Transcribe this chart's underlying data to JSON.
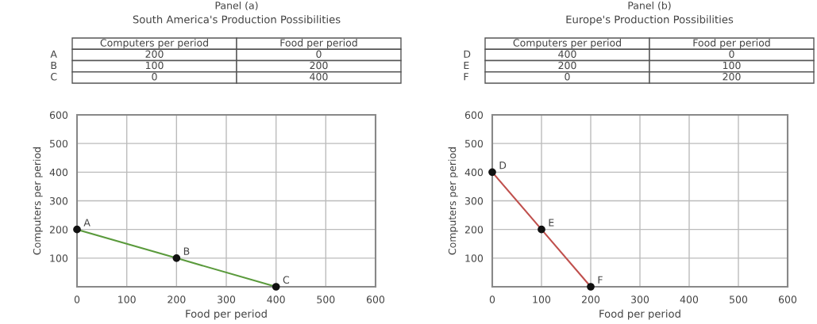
{
  "chart_data": [
    {
      "type": "other",
      "title": "Panel (a)",
      "subtitle": "South America's Production Possibilities",
      "categories": [
        "A",
        "B",
        "C"
      ],
      "data_labels": true,
      "series": [
        {
          "name": "Computers per period",
          "values": [
            200,
            100,
            0
          ]
        },
        {
          "name": "Food per period",
          "values": [
            0,
            200,
            400
          ]
        }
      ]
    },
    {
      "type": "line",
      "xlabel": "Food per period",
      "ylabel": "Computers per period",
      "x": [
        0,
        200,
        400
      ],
      "values": [
        200,
        100,
        0
      ],
      "color": "#5a9a3c",
      "marker": "circle",
      "grid": true,
      "xlim": [
        0,
        600
      ],
      "ylim": [
        0,
        600
      ],
      "xticks": [
        0,
        100,
        200,
        300,
        400,
        500,
        600
      ],
      "yticks": [
        100,
        200,
        300,
        400,
        500,
        600
      ],
      "annotations": [
        {
          "text": "A",
          "x": 0,
          "y": 200
        },
        {
          "text": "B",
          "x": 200,
          "y": 100
        },
        {
          "text": "C",
          "x": 400,
          "y": 0
        }
      ]
    },
    {
      "type": "other",
      "title": "Panel (b)",
      "subtitle": "Europe's Production Possibilities",
      "categories": [
        "D",
        "E",
        "F"
      ],
      "data_labels": true,
      "series": [
        {
          "name": "Computers per period",
          "values": [
            400,
            200,
            0
          ]
        },
        {
          "name": "Food per period",
          "values": [
            0,
            100,
            200
          ]
        }
      ]
    },
    {
      "type": "line",
      "xlabel": "Food per period",
      "ylabel": "Computers per period",
      "x": [
        0,
        100,
        200
      ],
      "values": [
        400,
        200,
        0
      ],
      "color": "#c0504d",
      "marker": "circle",
      "grid": true,
      "xlim": [
        0,
        600
      ],
      "ylim": [
        0,
        600
      ],
      "xticks": [
        0,
        100,
        200,
        300,
        400,
        500,
        600
      ],
      "yticks": [
        100,
        200,
        300,
        400,
        500,
        600
      ],
      "annotations": [
        {
          "text": "D",
          "x": 0,
          "y": 400
        },
        {
          "text": "E",
          "x": 100,
          "y": 200
        },
        {
          "text": "F",
          "x": 200,
          "y": 0
        }
      ]
    }
  ]
}
